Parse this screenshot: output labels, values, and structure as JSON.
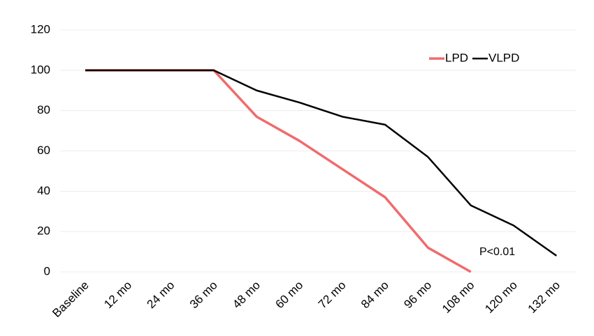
{
  "chart_data": {
    "type": "line",
    "categories": [
      "Baseline",
      "12 mo",
      "24 mo",
      "36 mo",
      "48 mo",
      "60 mo",
      "72 mo",
      "84 mo",
      "96 mo",
      "108 mo",
      "120 mo",
      "132 mo"
    ],
    "series": [
      {
        "name": "LPD",
        "color": "#f06b6b",
        "values": [
          100,
          100,
          100,
          100,
          77,
          65,
          51,
          37,
          12,
          0,
          null,
          null
        ]
      },
      {
        "name": "VLPD",
        "color": "#000000",
        "values": [
          100,
          100,
          100,
          100,
          90,
          84,
          77,
          73,
          57,
          33,
          23,
          8
        ]
      }
    ],
    "ylim": [
      0,
      120
    ],
    "yticks": [
      0,
      20,
      40,
      60,
      80,
      100,
      120
    ],
    "grid": true,
    "legend_position": "top-right",
    "annotation": "P<0.01"
  }
}
